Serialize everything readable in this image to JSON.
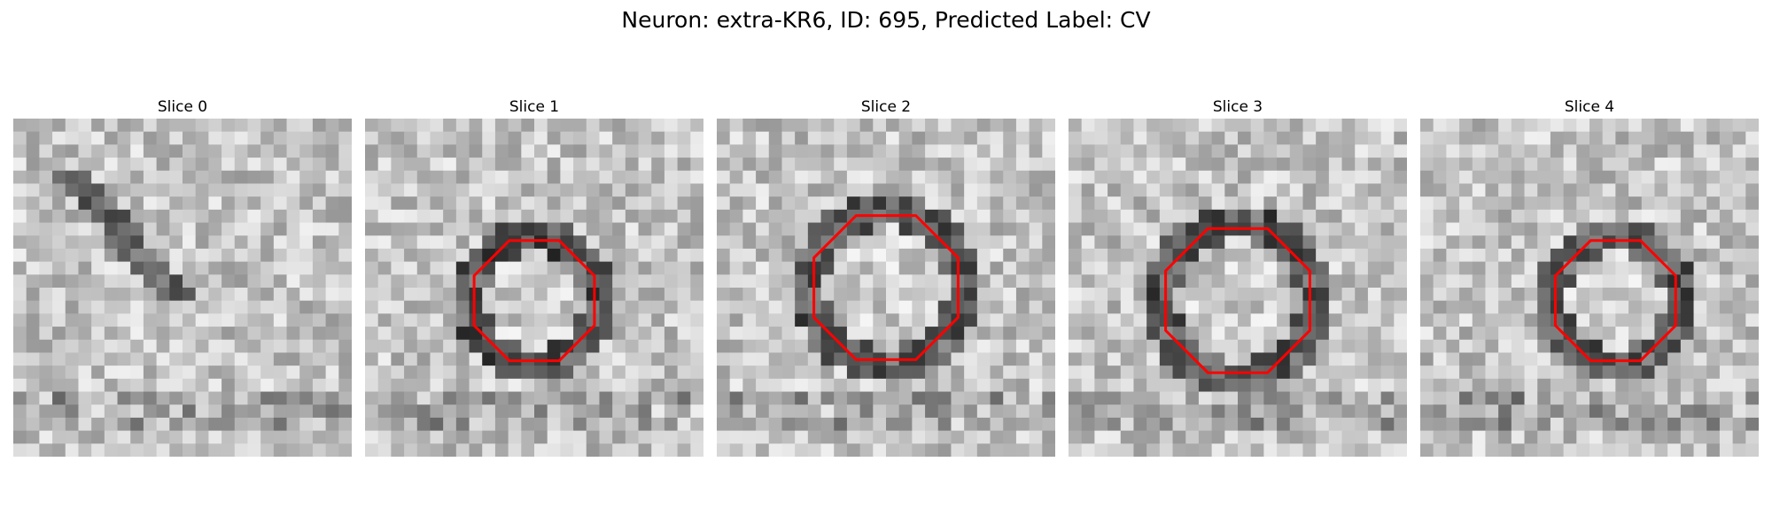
{
  "figure": {
    "title": "Neuron: extra-KR6, ID: 695, Predicted Label: CV",
    "outline_color": "#ff0000"
  },
  "slices": [
    {
      "title": "Slice 0",
      "seed": 11,
      "ring": null
    },
    {
      "title": "Slice 1",
      "seed": 23,
      "ring": {
        "cx": 13,
        "cy": 14,
        "r": 5
      }
    },
    {
      "title": "Slice 2",
      "seed": 37,
      "ring": {
        "cx": 13,
        "cy": 13,
        "r": 6
      }
    },
    {
      "title": "Slice 3",
      "seed": 51,
      "ring": {
        "cx": 13,
        "cy": 14,
        "r": 6
      }
    },
    {
      "title": "Slice 4",
      "seed": 73,
      "ring": {
        "cx": 15,
        "cy": 14,
        "r": 5
      }
    }
  ]
}
